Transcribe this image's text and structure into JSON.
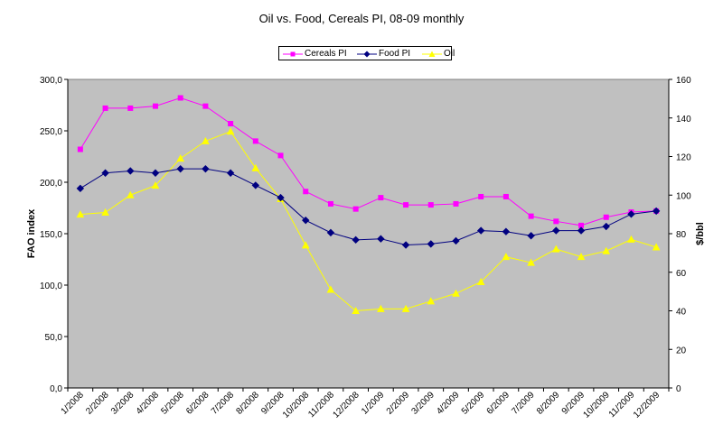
{
  "chart_data": {
    "type": "line",
    "title": "Oil vs. Food, Cereals PI, 08-09 monthly",
    "xlabel": "",
    "ylabel": "FAO index",
    "y2label": "$/bbl",
    "categories": [
      "1/2008",
      "2/2008",
      "3/2008",
      "4/2008",
      "5/2008",
      "6/2008",
      "7/2008",
      "8/2008",
      "9/2008",
      "10/2008",
      "11/2008",
      "12/2008",
      "1/2009",
      "2/2009",
      "3/2009",
      "4/2009",
      "5/2009",
      "6/2009",
      "7/2009",
      "8/2009",
      "9/2009",
      "10/2009",
      "11/2009",
      "12/2009"
    ],
    "ylim": [
      0,
      300
    ],
    "y_ticks": [
      "0,0",
      "50,0",
      "100,0",
      "150,0",
      "200,0",
      "250,0",
      "300,0"
    ],
    "y2lim": [
      0,
      160
    ],
    "y2_ticks": [
      "0",
      "20",
      "40",
      "60",
      "80",
      "100",
      "120",
      "140",
      "160"
    ],
    "series": [
      {
        "name": "Cereals PI",
        "axis": "left",
        "color": "#ff00ff",
        "marker": "square",
        "values": [
          232,
          272,
          272,
          274,
          282,
          274,
          257,
          240,
          226,
          191,
          179,
          174,
          185,
          178,
          178,
          179,
          186,
          186,
          167,
          162,
          158,
          166,
          171,
          172
        ]
      },
      {
        "name": "Food PI",
        "axis": "left",
        "color": "#000080",
        "marker": "diamond",
        "values": [
          194,
          209,
          211,
          209,
          213,
          213,
          209,
          197,
          185,
          163,
          151,
          144,
          145,
          139,
          140,
          143,
          153,
          152,
          148,
          153,
          153,
          157,
          169,
          172
        ]
      },
      {
        "name": "Oil",
        "axis": "right",
        "color": "#ffff00",
        "marker": "triangle",
        "values": [
          90,
          91,
          100,
          105,
          119,
          128,
          133,
          114,
          98,
          74,
          51,
          40,
          41,
          41,
          45,
          49,
          55,
          68,
          65,
          72,
          68,
          71,
          77,
          73
        ]
      }
    ],
    "plot_background": "#c0c0c0",
    "grid": false,
    "legend_position": "top-center"
  }
}
